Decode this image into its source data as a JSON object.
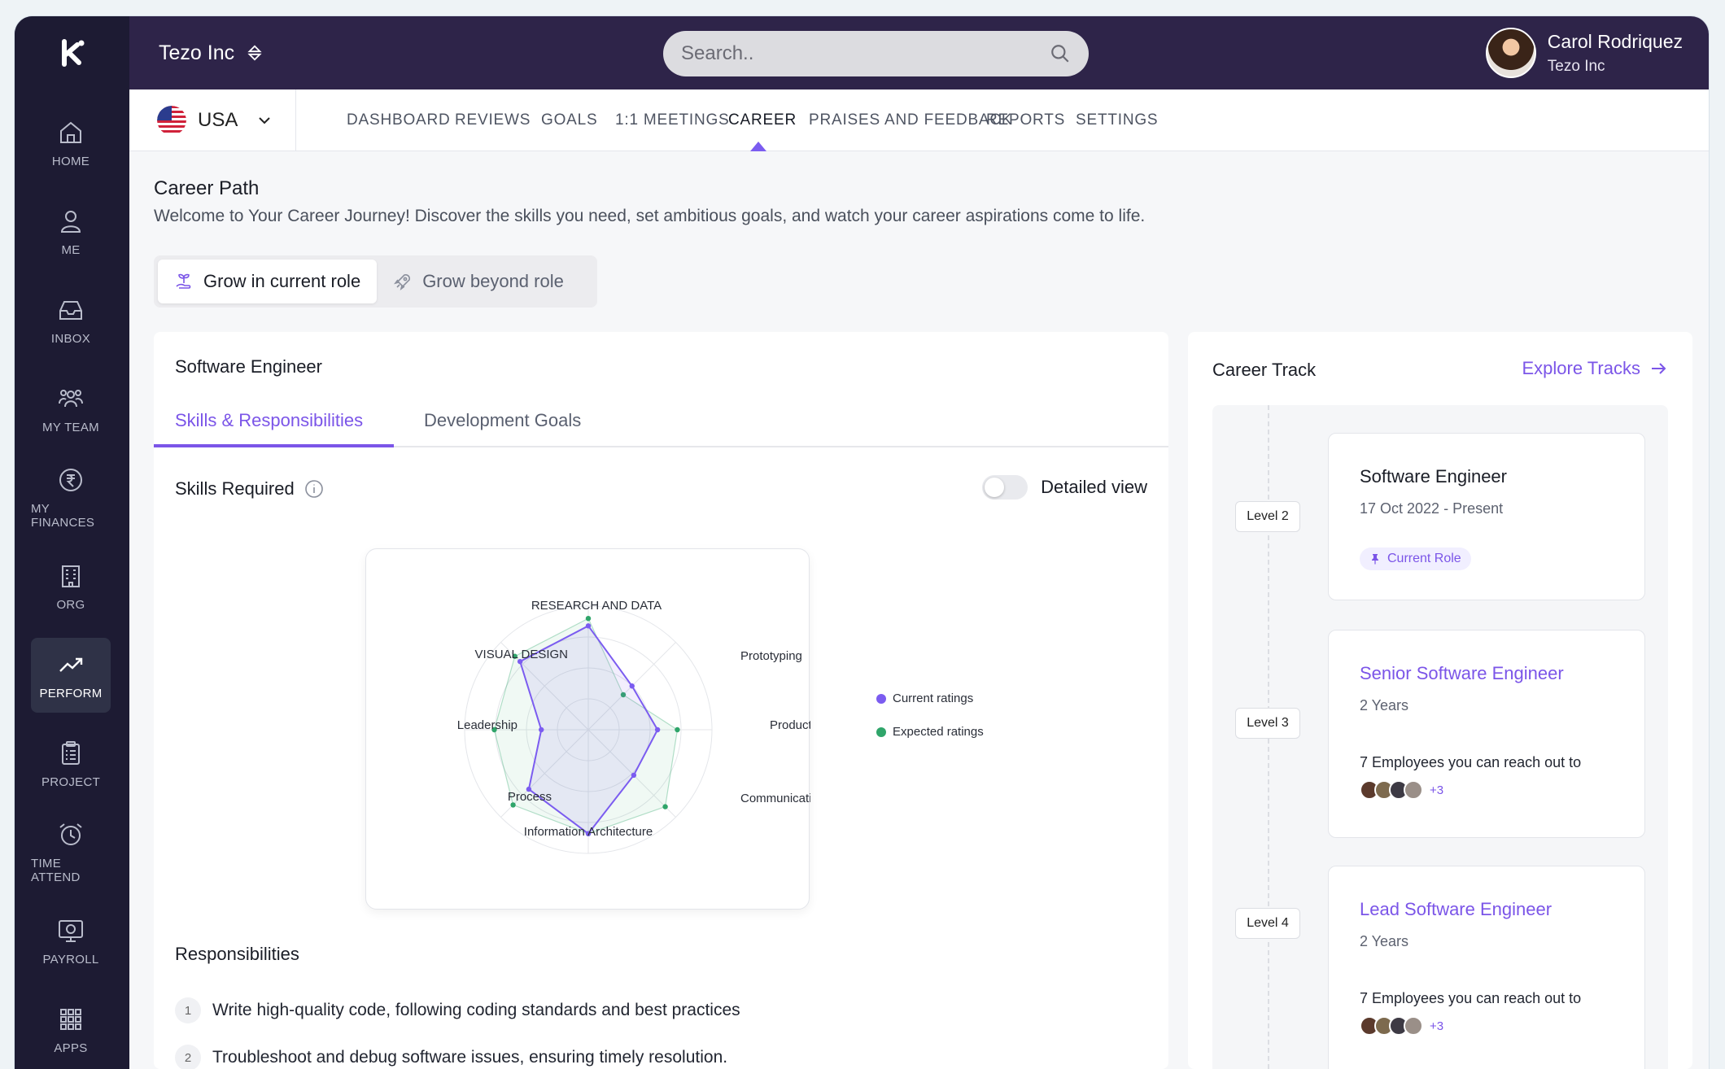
{
  "header": {
    "company": "Tezo Inc",
    "search_placeholder": "Search..",
    "user_name": "Carol Rodriquez",
    "user_org": "Tezo Inc"
  },
  "sidebar": {
    "items": [
      {
        "label": "HOME",
        "icon": "home-icon"
      },
      {
        "label": "ME",
        "icon": "user-icon"
      },
      {
        "label": "INBOX",
        "icon": "inbox-icon"
      },
      {
        "label": "MY TEAM",
        "icon": "team-icon"
      },
      {
        "label": "MY FINANCES",
        "icon": "rupee-icon"
      },
      {
        "label": "ORG",
        "icon": "building-icon"
      },
      {
        "label": "PERFORM",
        "icon": "trend-icon",
        "active": true
      },
      {
        "label": "PROJECT",
        "icon": "clipboard-icon"
      },
      {
        "label": "TIME ATTEND",
        "icon": "alarm-clock-icon"
      },
      {
        "label": "PAYROLL",
        "icon": "payroll-icon"
      },
      {
        "label": "APPS",
        "icon": "apps-grid-icon"
      }
    ]
  },
  "country": {
    "label": "USA",
    "icon": "us-flag-icon"
  },
  "tabs": [
    {
      "label": "DASHBOARD"
    },
    {
      "label": "REVIEWS"
    },
    {
      "label": "GOALS"
    },
    {
      "label": "1:1 MEETINGS"
    },
    {
      "label": "CAREER",
      "active": true
    },
    {
      "label": "PRAISES AND FEEDBACK"
    },
    {
      "label": "REPORTS"
    },
    {
      "label": "SETTINGS"
    }
  ],
  "page": {
    "title": "Career Path",
    "subtitle": "Welcome to Your Career Journey! Discover the skills you need, set ambitious goals, and watch your career aspirations come to life.",
    "segments": [
      "Grow in current role",
      "Grow beyond role"
    ]
  },
  "role": {
    "title": "Software Engineer",
    "subtabs": [
      "Skills & Responsibilities",
      "Development Goals"
    ],
    "skills_label": "Skills Required",
    "detailed_view_label": "Detailed view",
    "responsibilities_label": "Responsibilities",
    "responsibilities": [
      {
        "num": "1",
        "text": "Write high-quality code, following coding standards and best practices"
      },
      {
        "num": "2",
        "text": "Troubleshoot and debug software issues, ensuring timely resolution."
      }
    ]
  },
  "chart_data": {
    "type": "radar",
    "axes": [
      "RESEARCH AND DATA",
      "Prototyping",
      "Product",
      "Communication",
      "Information Architecture",
      "Process",
      "Leadership",
      "VISUAL DESIGN"
    ],
    "rmax": 5,
    "series": [
      {
        "name": "Current ratings",
        "color": "#7b5cf0",
        "values": [
          4.2,
          2.5,
          2.8,
          2.6,
          4.2,
          3.4,
          1.9,
          3.9
        ]
      },
      {
        "name": "Expected ratings",
        "color": "#2fa56a",
        "values": [
          4.5,
          2.0,
          3.6,
          4.4,
          4.2,
          4.3,
          3.8,
          4.2
        ]
      }
    ]
  },
  "career_track": {
    "title": "Career Track",
    "explore_label": "Explore Tracks",
    "levels": [
      {
        "level": "Level 2",
        "title": "Software Engineer",
        "sub": "17 Oct 2022 - Present",
        "badge": "Current Role"
      },
      {
        "level": "Level 3",
        "title": "Senior Software Engineer",
        "sub": "2 Years",
        "reach": "7 Employees you can reach out to",
        "more": "+3"
      },
      {
        "level": "Level 4",
        "title": "Lead Software Engineer",
        "sub": "2 Years",
        "reach": "7 Employees you can reach out to",
        "more": "+3"
      }
    ]
  },
  "colors": {
    "accent": "#7b55e8",
    "topbar": "#2e2449",
    "sidebar": "#1d1b33"
  }
}
